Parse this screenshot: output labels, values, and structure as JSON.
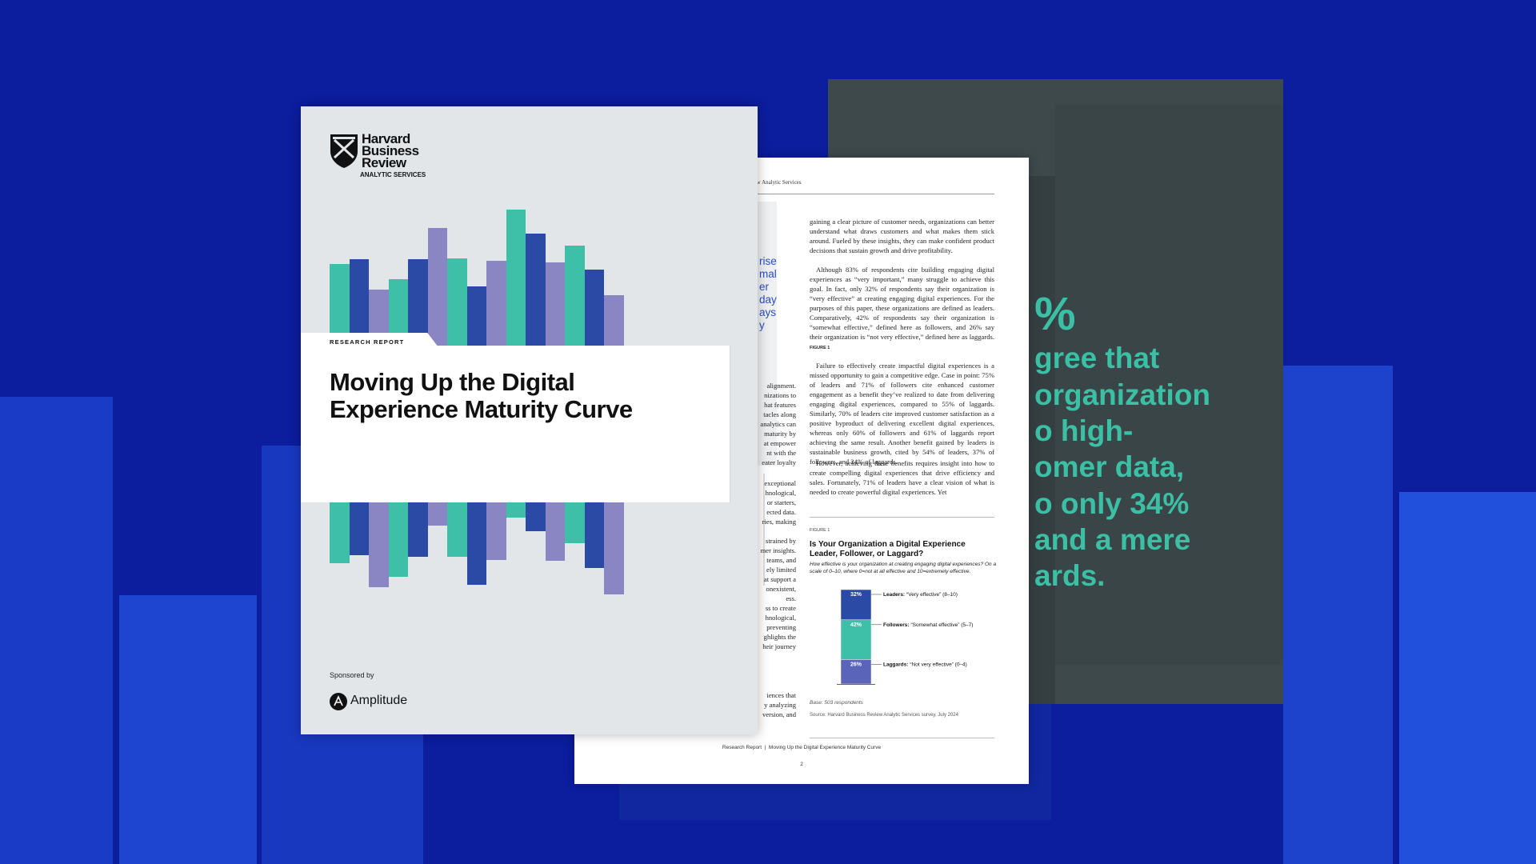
{
  "cover": {
    "brand": [
      "Harvard",
      "Business",
      "Review"
    ],
    "brand_sub": "ANALYTIC SERVICES",
    "tag": "RESEARCH REPORT",
    "title": "Moving Up the Digital Experience Maturity Curve",
    "sponsored_by": "Sponsored by",
    "sponsor": "Amplitude"
  },
  "page": {
    "header": "Harvard Business Review Analytic Services",
    "pull_quote_fragments": [
      "rise",
      "mal",
      "er",
      "day",
      "ays",
      "y"
    ],
    "left_column": [
      [
        "alignment.",
        "nizations to",
        "hat features",
        "tacles along",
        "analytics can",
        "maturity by",
        "at empower",
        "nt with the",
        "eater loyalty"
      ],
      [
        "exceptional",
        "hnological,",
        "or starters,",
        "ected data.",
        "ries, making"
      ],
      [
        "strained by",
        "mer insights.",
        "teams, and",
        "ely limited",
        "at support a",
        "onexistent,",
        "ess.",
        "ss to create",
        "hnological,",
        "preventing",
        "ghlights the",
        "heir journey"
      ],
      [
        "iences that",
        "y analyzing",
        "version, and"
      ]
    ],
    "paragraphs": [
      "gaining a clear picture of customer needs, organizations can better understand what draws customers and what makes them stick around. Fueled by these insights, they can make confident product decisions that sustain growth and drive profitability.",
      "Although 83% of respondents cite building engaging digital experiences as “very important,” many struggle to achieve this goal. In fact, only 32% of respondents say their organization is “very effective” at creating engaging digital experiences. For the purposes of this paper, these organizations are defined as leaders. Comparatively, 42% of respondents say their organization is “somewhat effective,” defined here as followers, and 26% say their organization is “not very effective,” defined here as laggards.",
      "Failure to effectively create impactful digital experiences is a missed opportunity to gain a competitive edge. Case in point: 75% of leaders and 71% of followers cite enhanced customer engagement as a benefit they’ve realized to date from delivering engaging digital experiences, compared to 55% of laggards. Similarly, 70% of leaders cite improved customer satisfaction as a positive byproduct of delivering excellent digital experiences, whereas only 60% of followers and 61% of laggards report achieving the same result. Another benefit gained by leaders is sustainable business growth, cited by 54% of leaders, 37% of followers, and 24% of laggards.",
      "However, achieving these benefits requires insight into how to create compelling digital experiences that drive efficiency and sales. Fortunately, 71% of leaders have a clear vision of what is needed to create powerful digital experiences. Yet"
    ],
    "figure_ref": "FIGURE 1",
    "figure": {
      "type": "stacked-bar",
      "label": "FIGURE 1",
      "title": "Is Your Organization a Digital Experience Leader, Follower, or Laggard?",
      "subtitle": "How effective is your organization at creating engaging digital experiences? On a scale of 0–10, where 0=not at all effective and 10=extremely effective.",
      "categories": [
        "Leaders:",
        "Followers:",
        "Laggards:"
      ],
      "descriptions": [
        "“Very effective” (8–10)",
        "“Somewhat effective” (5–7)",
        "“Not very effective” (0–4)"
      ],
      "values": [
        32,
        42,
        26
      ],
      "value_labels": [
        "32%",
        "42%",
        "26%"
      ],
      "colors": [
        "#2b4aa6",
        "#3dbfa8",
        "#5a64b8"
      ],
      "ylim": [
        0,
        100
      ],
      "base": "Base: 503 respondents",
      "source": "Source: Harvard Business Review Analytic Services survey, July 2024"
    },
    "footer": "Research Report  |  Moving Up the Digital Experience Maturity Curve",
    "page_number": "2"
  },
  "panel": {
    "lines": [
      "%",
      "gree that",
      "organization",
      "o high-",
      "omer data,",
      "o only 34%",
      "and a mere",
      "ards."
    ]
  }
}
